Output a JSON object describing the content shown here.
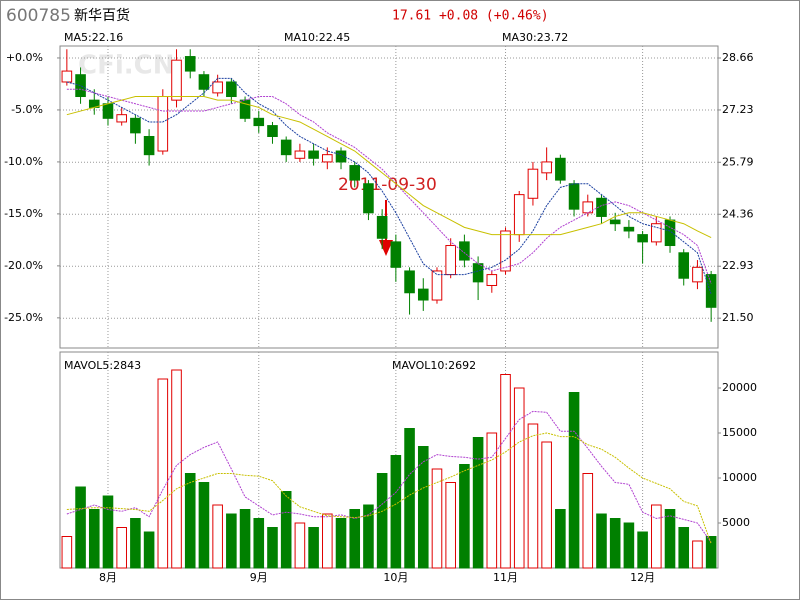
{
  "header": {
    "code": "600785",
    "name": "新华百货",
    "quote": "17.61 +0.08 (+0.46%)"
  },
  "watermark": "CFi.CN",
  "chart_data": [
    {
      "type": "candlestick",
      "annotation": "2011-09-30",
      "categories": [
        null,
        null,
        null,
        "8月",
        null,
        null,
        null,
        null,
        null,
        null,
        null,
        null,
        null,
        null,
        "9月",
        null,
        null,
        null,
        null,
        null,
        null,
        null,
        null,
        null,
        "10月",
        null,
        null,
        null,
        null,
        null,
        null,
        null,
        "11月",
        null,
        null,
        null,
        null,
        null,
        null,
        null,
        null,
        null,
        "12月",
        null,
        null,
        null,
        null,
        null
      ],
      "open": [
        28.0,
        28.2,
        27.5,
        27.4,
        26.9,
        27.0,
        26.5,
        26.1,
        27.5,
        28.7,
        28.2,
        27.7,
        28.0,
        27.5,
        27.0,
        26.8,
        26.4,
        25.9,
        26.1,
        25.8,
        26.1,
        25.7,
        25.2,
        24.3,
        23.6,
        22.8,
        22.3,
        22.0,
        22.7,
        23.6,
        23.0,
        22.4,
        22.8,
        23.8,
        24.8,
        25.5,
        25.9,
        25.2,
        24.4,
        24.8,
        24.2,
        24.0,
        23.8,
        23.6,
        24.2,
        23.3,
        22.5,
        22.7
      ],
      "high": [
        28.9,
        28.4,
        27.8,
        27.6,
        27.3,
        27.1,
        26.7,
        27.8,
        28.9,
        28.9,
        28.3,
        28.2,
        28.1,
        27.6,
        27.2,
        26.9,
        26.5,
        26.3,
        26.3,
        26.2,
        26.2,
        25.8,
        25.3,
        24.5,
        23.8,
        22.9,
        22.6,
        22.9,
        23.7,
        23.8,
        23.2,
        22.8,
        24.0,
        25.0,
        25.8,
        26.2,
        26.0,
        25.3,
        24.9,
        24.9,
        24.4,
        24.2,
        23.9,
        24.3,
        24.3,
        23.4,
        23.1,
        22.8
      ],
      "low": [
        27.9,
        27.4,
        27.1,
        26.8,
        26.8,
        26.3,
        25.7,
        26.0,
        27.3,
        28.1,
        27.6,
        27.6,
        27.4,
        26.9,
        26.6,
        26.3,
        25.8,
        25.8,
        25.7,
        25.6,
        25.6,
        25.1,
        24.2,
        23.4,
        22.5,
        21.6,
        21.7,
        21.9,
        22.6,
        22.9,
        22.0,
        22.2,
        22.7,
        23.6,
        24.6,
        25.3,
        25.2,
        24.3,
        24.3,
        24.1,
        23.9,
        23.7,
        23.0,
        23.5,
        23.3,
        22.4,
        22.3,
        21.4
      ],
      "close": [
        28.3,
        27.6,
        27.3,
        27.0,
        27.1,
        26.6,
        26.0,
        27.6,
        28.6,
        28.3,
        27.8,
        28.0,
        27.6,
        27.0,
        26.8,
        26.5,
        26.0,
        26.1,
        25.9,
        26.0,
        25.8,
        25.3,
        24.4,
        23.7,
        22.9,
        22.2,
        22.0,
        22.8,
        23.5,
        23.1,
        22.5,
        22.7,
        23.9,
        24.9,
        25.6,
        25.8,
        25.3,
        24.5,
        24.7,
        24.3,
        24.1,
        23.9,
        23.6,
        24.1,
        23.5,
        22.6,
        22.9,
        21.8
      ],
      "up_color": "#e00000",
      "down_color": "#008000",
      "series": [
        {
          "name": "MA5:22.16",
          "color": "#1a3fa0",
          "values": [
            28.0,
            27.9,
            27.7,
            27.5,
            27.3,
            27.1,
            26.9,
            26.9,
            27.1,
            27.4,
            27.7,
            28.1,
            28.1,
            27.7,
            27.4,
            27.2,
            26.8,
            26.5,
            26.3,
            26.1,
            26.0,
            25.8,
            25.5,
            25.0,
            24.4,
            23.7,
            23.0,
            22.7,
            22.7,
            22.7,
            22.8,
            22.9,
            23.1,
            23.4,
            23.9,
            24.6,
            25.1,
            25.2,
            25.2,
            24.9,
            24.6,
            24.3,
            24.1,
            24.0,
            23.9,
            23.6,
            23.3,
            22.16
          ]
        },
        {
          "name": "MA10:22.45",
          "color": "#b040d0",
          "values": [
            27.8,
            27.8,
            27.7,
            27.6,
            27.5,
            27.4,
            27.3,
            27.2,
            27.2,
            27.2,
            27.2,
            27.3,
            27.4,
            27.5,
            27.6,
            27.6,
            27.4,
            27.1,
            26.9,
            26.6,
            26.4,
            26.2,
            25.9,
            25.6,
            25.2,
            24.8,
            24.4,
            24.0,
            23.6,
            23.3,
            23.0,
            22.8,
            22.9,
            23.0,
            23.3,
            23.7,
            24.0,
            24.2,
            24.4,
            24.6,
            24.7,
            24.6,
            24.4,
            24.2,
            24.0,
            23.8,
            23.5,
            22.45
          ]
        },
        {
          "name": "MA30:23.72",
          "color": "#c8c000",
          "values": [
            27.1,
            27.2,
            27.3,
            27.4,
            27.5,
            27.6,
            27.6,
            27.6,
            27.6,
            27.6,
            27.6,
            27.5,
            27.5,
            27.4,
            27.3,
            27.1,
            27.0,
            26.9,
            26.7,
            26.5,
            26.3,
            26.1,
            25.8,
            25.5,
            25.2,
            24.9,
            24.6,
            24.4,
            24.2,
            24.0,
            23.9,
            23.8,
            23.8,
            23.8,
            23.8,
            23.8,
            23.8,
            23.9,
            24.0,
            24.1,
            24.3,
            24.4,
            24.4,
            24.3,
            24.2,
            24.1,
            23.9,
            23.72
          ]
        }
      ],
      "ylim": [
        20.68,
        28.99
      ],
      "yticks": [
        {
          "value": 21.5,
          "label": "21.50"
        },
        22.93,
        24.36,
        25.79,
        27.23,
        28.66
      ],
      "y2lim": [
        -27.9,
        1.15
      ],
      "y2ticks": [
        {
          "value": -25,
          "label": "-25.0%"
        },
        {
          "value": -20,
          "label": "-20.0%"
        },
        {
          "value": -15,
          "label": "-15.0%"
        },
        {
          "value": -10,
          "label": "-10.0%"
        },
        {
          "value": -5,
          "label": "-5.0%"
        },
        {
          "value": 0,
          "label": "+0.0%"
        }
      ],
      "grid": true
    },
    {
      "type": "bar",
      "values": [
        3500,
        9000,
        6500,
        8000,
        4500,
        5500,
        4000,
        21000,
        22000,
        10500,
        9500,
        7000,
        6000,
        6500,
        5500,
        4500,
        8500,
        5000,
        4500,
        6000,
        5500,
        6500,
        7000,
        10500,
        12500,
        15500,
        13500,
        11000,
        9500,
        11500,
        14500,
        15000,
        21500,
        20000,
        16000,
        14000,
        6500,
        19500,
        10500,
        6000,
        5500,
        5000,
        4000,
        7000,
        6500,
        4500,
        3000,
        3500
      ],
      "series": [
        {
          "name": "MAVOL5:2843",
          "color": "#b040d0",
          "values": [
            6000,
            6500,
            7000,
            6500,
            6300,
            6700,
            5700,
            8700,
            11400,
            12600,
            13400,
            14000,
            11000,
            7900,
            6900,
            5900,
            6200,
            6000,
            5700,
            5700,
            5900,
            5500,
            5900,
            7100,
            8400,
            10400,
            11800,
            12600,
            12400,
            12300,
            12100,
            12300,
            14400,
            16500,
            17400,
            17300,
            15200,
            15200,
            13300,
            11300,
            9500,
            9300,
            6200,
            5500,
            5800,
            5400,
            5000,
            2843
          ]
        },
        {
          "name": "MAVOL10:2692",
          "color": "#c8c000",
          "values": [
            6500,
            6600,
            6700,
            6700,
            6600,
            6500,
            6300,
            7500,
            8800,
            9500,
            10000,
            10500,
            10500,
            10300,
            10200,
            9700,
            8000,
            6800,
            6300,
            5800,
            5700,
            5600,
            5800,
            6300,
            7100,
            8100,
            8900,
            9500,
            10100,
            10800,
            11400,
            12000,
            12900,
            14000,
            14700,
            15000,
            14600,
            14600,
            13700,
            13200,
            12300,
            11100,
            10000,
            9400,
            8800,
            7400,
            6900,
            2692
          ]
        }
      ],
      "ylim": [
        0,
        24000
      ],
      "yticks": [
        5000,
        10000,
        15000,
        20000
      ]
    }
  ]
}
